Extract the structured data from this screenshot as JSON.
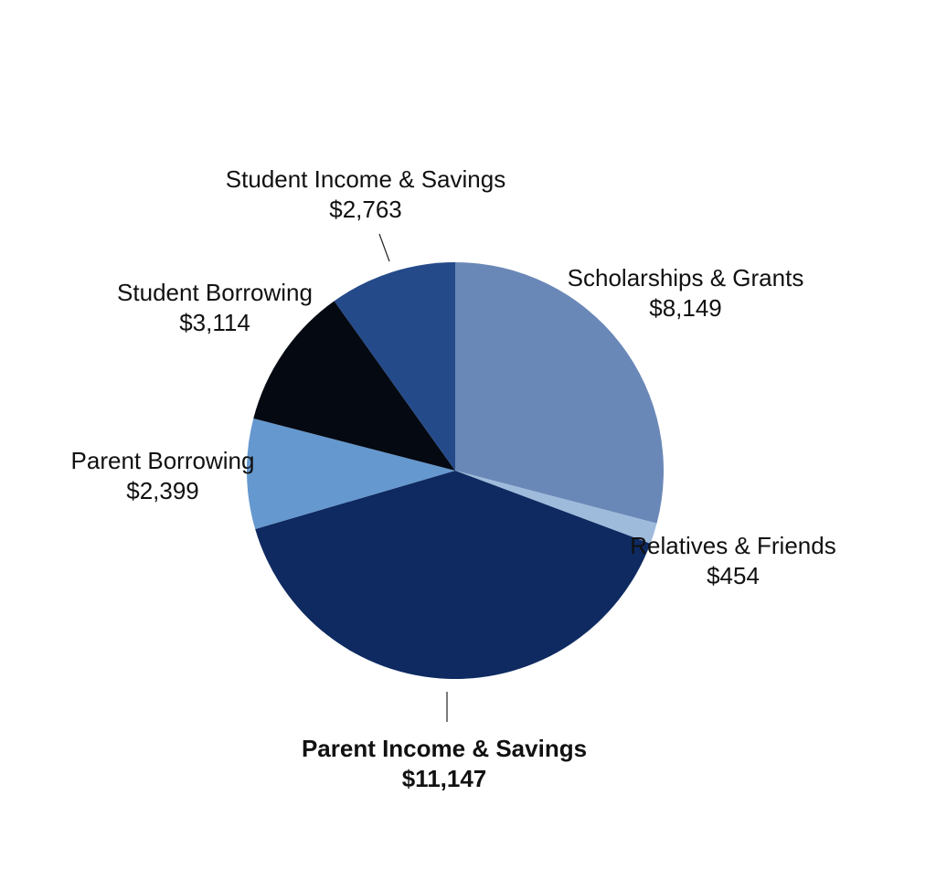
{
  "chart_data": {
    "type": "pie",
    "title": "",
    "start_angle_deg": 0,
    "direction": "clockwise",
    "legend": "none",
    "slices": [
      {
        "label": "Scholarships & Grants",
        "value": 8149,
        "value_label": "$8,149",
        "color": "#6a88b7",
        "bold": false
      },
      {
        "label": "Relatives & Friends",
        "value": 454,
        "value_label": "$454",
        "color": "#9fbbdc",
        "bold": false
      },
      {
        "label": "Parent Income & Savings",
        "value": 11147,
        "value_label": "$11,147",
        "color": "#0e2a61",
        "bold": true
      },
      {
        "label": "Parent Borrowing",
        "value": 2399,
        "value_label": "$2,399",
        "color": "#6598cf",
        "bold": false
      },
      {
        "label": "Student Borrowing",
        "value": 3114,
        "value_label": "$3,114",
        "color": "#050912",
        "bold": false
      },
      {
        "label": "Student Income & Savings",
        "value": 2763,
        "value_label": "$2,763",
        "color": "#244a8a",
        "bold": false
      }
    ]
  }
}
